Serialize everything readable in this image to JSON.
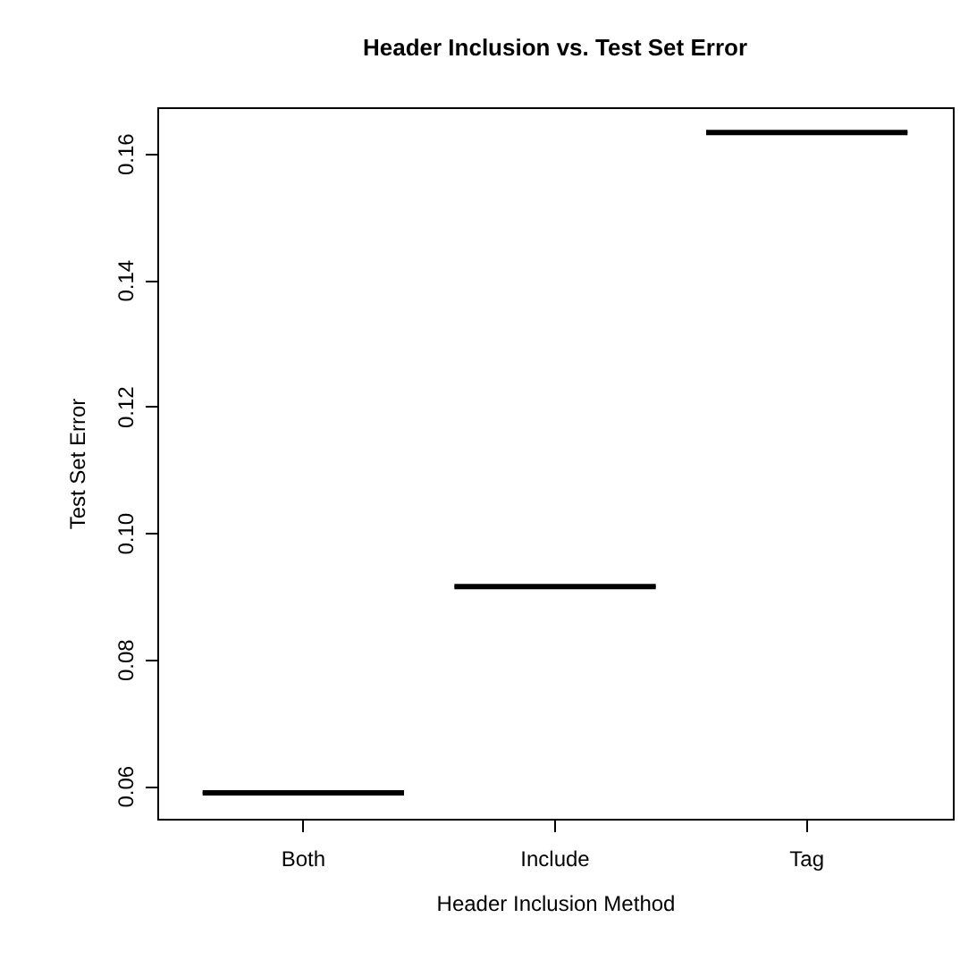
{
  "chart_data": {
    "type": "box",
    "title": "Header Inclusion vs. Test Set Error",
    "xlabel": "Header Inclusion Method",
    "ylabel": "Test Set Error",
    "categories": [
      "Both",
      "Include",
      "Tag"
    ],
    "series": [
      {
        "color": "#000000",
        "boxes": [
          {
            "low": 0.0589,
            "q1": 0.0589,
            "median": 0.0589,
            "q3": 0.0589,
            "high": 0.0589
          },
          {
            "low": 0.0915,
            "q1": 0.0915,
            "median": 0.0915,
            "q3": 0.0915,
            "high": 0.0915
          },
          {
            "low": 0.1633,
            "q1": 0.1633,
            "median": 0.1633,
            "q3": 0.1633,
            "high": 0.1633
          }
        ]
      }
    ],
    "ylim": [
      0.0548,
      0.1673
    ],
    "yticks": [
      0.06,
      0.08,
      {
        "value": 0.1,
        "label": "0.10"
      },
      0.12,
      0.14,
      0.16
    ]
  }
}
